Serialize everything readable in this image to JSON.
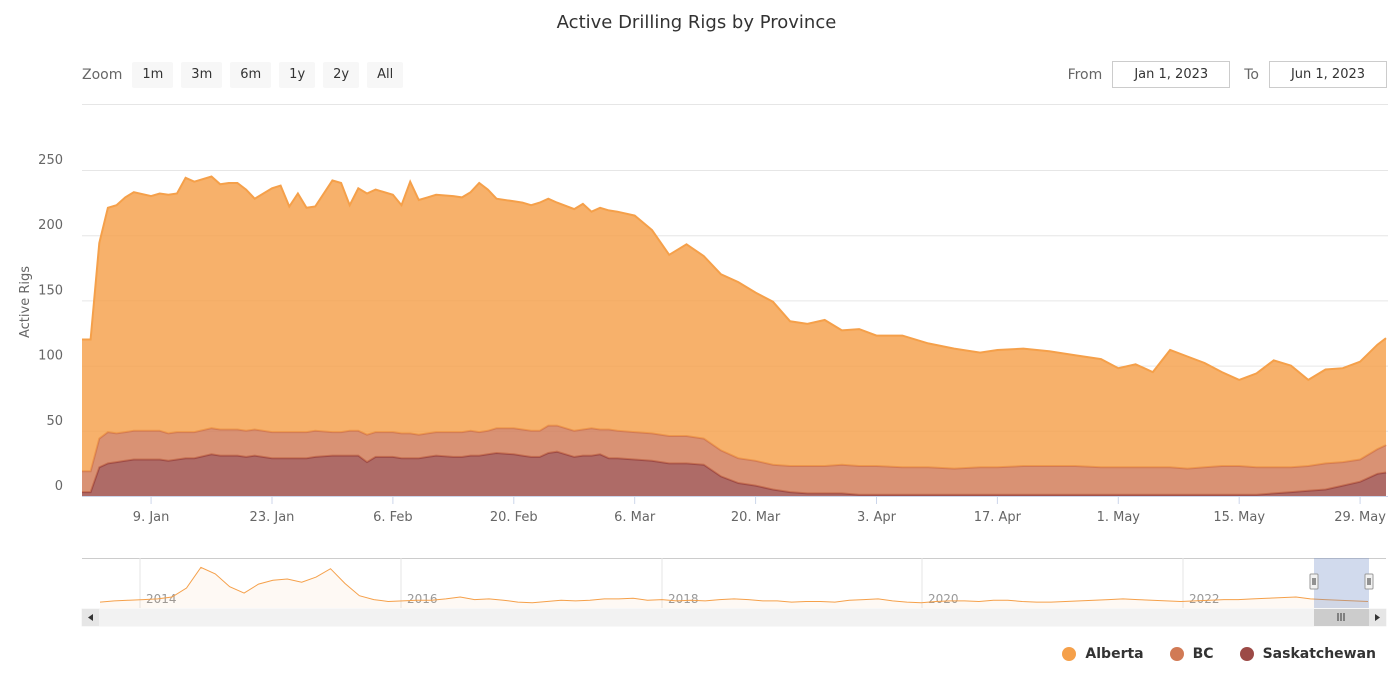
{
  "chart_data": {
    "type": "area",
    "stacked": true,
    "title": "Active Drilling Rigs by Province",
    "xlabel": "",
    "ylabel": "Active Rigs",
    "ylim": [
      0,
      250
    ],
    "yticks": [
      "0",
      "50",
      "100",
      "150",
      "200",
      "250"
    ],
    "xticks": [
      {
        "date": "2023-01-09",
        "label": "9. Jan"
      },
      {
        "date": "2023-01-23",
        "label": "23. Jan"
      },
      {
        "date": "2023-02-06",
        "label": "6. Feb"
      },
      {
        "date": "2023-02-20",
        "label": "20. Feb"
      },
      {
        "date": "2023-03-06",
        "label": "6. Mar"
      },
      {
        "date": "2023-03-20",
        "label": "20. Mar"
      },
      {
        "date": "2023-04-03",
        "label": "3. Apr"
      },
      {
        "date": "2023-04-17",
        "label": "17. Apr"
      },
      {
        "date": "2023-05-01",
        "label": "1. May"
      },
      {
        "date": "2023-05-15",
        "label": "15. May"
      },
      {
        "date": "2023-05-29",
        "label": "29. May"
      }
    ],
    "x_range": [
      "2023-01-01",
      "2023-06-01"
    ],
    "grid": true,
    "legend_position": "bottom-right",
    "x": [
      "2023-01-01",
      "2023-01-02",
      "2023-01-03",
      "2023-01-04",
      "2023-01-05",
      "2023-01-06",
      "2023-01-07",
      "2023-01-09",
      "2023-01-10",
      "2023-01-11",
      "2023-01-12",
      "2023-01-13",
      "2023-01-14",
      "2023-01-16",
      "2023-01-17",
      "2023-01-18",
      "2023-01-19",
      "2023-01-20",
      "2023-01-21",
      "2023-01-23",
      "2023-01-24",
      "2023-01-25",
      "2023-01-26",
      "2023-01-27",
      "2023-01-28",
      "2023-01-30",
      "2023-01-31",
      "2023-02-01",
      "2023-02-02",
      "2023-02-03",
      "2023-02-04",
      "2023-02-06",
      "2023-02-07",
      "2023-02-08",
      "2023-02-09",
      "2023-02-10",
      "2023-02-11",
      "2023-02-13",
      "2023-02-14",
      "2023-02-15",
      "2023-02-16",
      "2023-02-17",
      "2023-02-18",
      "2023-02-20",
      "2023-02-21",
      "2023-02-22",
      "2023-02-23",
      "2023-02-24",
      "2023-02-25",
      "2023-02-27",
      "2023-02-28",
      "2023-03-01",
      "2023-03-02",
      "2023-03-03",
      "2023-03-04",
      "2023-03-06",
      "2023-03-08",
      "2023-03-10",
      "2023-03-12",
      "2023-03-14",
      "2023-03-16",
      "2023-03-18",
      "2023-03-20",
      "2023-03-22",
      "2023-03-24",
      "2023-03-26",
      "2023-03-28",
      "2023-03-30",
      "2023-04-01",
      "2023-04-03",
      "2023-04-06",
      "2023-04-09",
      "2023-04-12",
      "2023-04-15",
      "2023-04-17",
      "2023-04-20",
      "2023-04-23",
      "2023-04-26",
      "2023-04-29",
      "2023-05-01",
      "2023-05-03",
      "2023-05-05",
      "2023-05-07",
      "2023-05-09",
      "2023-05-11",
      "2023-05-13",
      "2023-05-15",
      "2023-05-17",
      "2023-05-19",
      "2023-05-21",
      "2023-05-23",
      "2023-05-25",
      "2023-05-27",
      "2023-05-29",
      "2023-05-31",
      "2023-06-01"
    ],
    "series": [
      {
        "name": "Saskatchewan",
        "color": "#9c4a46",
        "values": [
          3,
          3,
          22,
          25,
          26,
          27,
          28,
          28,
          28,
          27,
          28,
          29,
          29,
          32,
          31,
          31,
          31,
          30,
          31,
          29,
          29,
          29,
          29,
          29,
          30,
          31,
          31,
          31,
          31,
          26,
          30,
          30,
          29,
          29,
          29,
          30,
          31,
          30,
          30,
          31,
          31,
          32,
          33,
          32,
          31,
          30,
          30,
          33,
          34,
          30,
          31,
          31,
          32,
          29,
          29,
          28,
          27,
          25,
          25,
          24,
          15,
          10,
          8,
          5,
          3,
          2,
          2,
          2,
          1,
          1,
          1,
          1,
          1,
          1,
          1,
          1,
          1,
          1,
          1,
          1,
          1,
          1,
          1,
          1,
          1,
          1,
          1,
          1,
          2,
          3,
          4,
          5,
          8,
          11,
          17,
          18
        ]
      },
      {
        "name": "BC",
        "color": "#d17a55",
        "values": [
          16,
          16,
          22,
          24,
          22,
          22,
          22,
          22,
          22,
          21,
          21,
          20,
          20,
          20,
          20,
          20,
          20,
          20,
          20,
          20,
          20,
          20,
          20,
          20,
          20,
          18,
          18,
          19,
          19,
          21,
          19,
          19,
          19,
          19,
          18,
          18,
          18,
          19,
          19,
          19,
          18,
          18,
          19,
          20,
          20,
          20,
          20,
          21,
          20,
          20,
          20,
          21,
          19,
          22,
          21,
          21,
          21,
          21,
          21,
          20,
          20,
          19,
          19,
          19,
          20,
          21,
          21,
          22,
          22,
          22,
          21,
          21,
          20,
          21,
          21,
          22,
          22,
          22,
          21,
          21,
          21,
          21,
          21,
          20,
          21,
          22,
          22,
          21,
          20,
          19,
          19,
          20,
          18,
          17,
          19,
          21
        ]
      },
      {
        "name": "Alberta",
        "color": "#f5a04a",
        "values": [
          101,
          101,
          150,
          172,
          175,
          180,
          183,
          180,
          182,
          183,
          183,
          195,
          192,
          193,
          188,
          189,
          189,
          185,
          177,
          187,
          189,
          173,
          183,
          172,
          172,
          193,
          191,
          173,
          186,
          185,
          186,
          182,
          175,
          193,
          180,
          181,
          182,
          181,
          180,
          183,
          191,
          185,
          176,
          174,
          174,
          173,
          175,
          174,
          171,
          170,
          173,
          166,
          170,
          168,
          168,
          166,
          156,
          139,
          147,
          140,
          135,
          135,
          129,
          125,
          111,
          109,
          112,
          103,
          105,
          100,
          101,
          95,
          92,
          88,
          90,
          90,
          88,
          85,
          83,
          76,
          79,
          73,
          90,
          86,
          80,
          72,
          66,
          72,
          82,
          78,
          66,
          72,
          72,
          75,
          80,
          82
        ]
      }
    ]
  },
  "controls": {
    "zoom_label": "Zoom",
    "zoom_buttons": [
      "1m",
      "3m",
      "6m",
      "1y",
      "2y",
      "All"
    ],
    "from_label": "From",
    "from_value": "Jan 1, 2023",
    "to_label": "To",
    "to_value": "Jun 1, 2023"
  },
  "navigator": {
    "year_labels": [
      "2014",
      "2016",
      "2018",
      "2020",
      "2022"
    ],
    "line_color": "#f5a04a",
    "series_trend": [
      96,
      98,
      99,
      100,
      101,
      104,
      118,
      150,
      140,
      120,
      110,
      124,
      130,
      132,
      127,
      135,
      148,
      125,
      106,
      100,
      97,
      98,
      99,
      99,
      101,
      104,
      100,
      101,
      99,
      96,
      95,
      97,
      99,
      98,
      99,
      101,
      101,
      102,
      99,
      100,
      98,
      99,
      98,
      100,
      101,
      100,
      98,
      98,
      96,
      97,
      97,
      96,
      99,
      100,
      101,
      98,
      96,
      95,
      97,
      98,
      98,
      97,
      99,
      99,
      97,
      96,
      96,
      97,
      98,
      99,
      100,
      101,
      100,
      99,
      98,
      97,
      98,
      99,
      100,
      100,
      101,
      102,
      103,
      104,
      101,
      100,
      99,
      98,
      97
    ]
  }
}
